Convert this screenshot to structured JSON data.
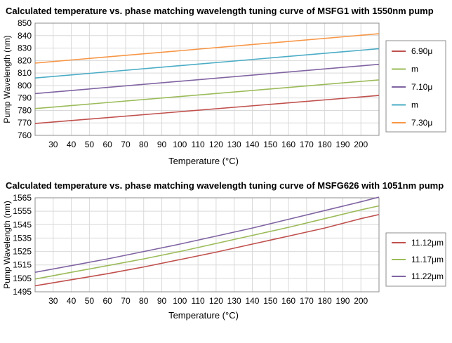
{
  "chart_data": [
    {
      "type": "line",
      "title": "Calculated temperature vs. phase matching wavelength tuning curve of MSFG1 with 1550nm pump",
      "xlabel": "Temperature (°C)",
      "ylabel": "Pump Wavelength (nm)",
      "xlim": [
        20,
        210
      ],
      "ylim": [
        760,
        850
      ],
      "xticks": [
        30,
        40,
        50,
        60,
        70,
        80,
        90,
        100,
        110,
        120,
        130,
        140,
        150,
        160,
        170,
        180,
        190,
        200
      ],
      "yticks": [
        760,
        770,
        780,
        790,
        800,
        810,
        820,
        830,
        840,
        850
      ],
      "grid": true,
      "legend_position": "right",
      "x": [
        20,
        210
      ],
      "series": [
        {
          "name": "6.90μ",
          "color": "#c0504d",
          "values": [
            769.5,
            792
          ]
        },
        {
          "name": "m",
          "color": "#9bbb59",
          "values": [
            781.5,
            804.5
          ]
        },
        {
          "name": "7.10μ",
          "color": "#8064a2",
          "values": [
            793.5,
            817
          ]
        },
        {
          "name": "m",
          "color": "#4bacc6",
          "values": [
            806,
            829.5
          ]
        },
        {
          "name": "7.30μ",
          "color": "#f79646",
          "values": [
            818,
            841.5
          ]
        }
      ]
    },
    {
      "type": "line",
      "title": "Calculated temperature vs. phase matching wavelength tuning curve of MSFG626 with 1051nm pump",
      "xlabel": "Temperature (°C)",
      "ylabel": "Pump Wavelength (nm)",
      "xlim": [
        20,
        210
      ],
      "ylim": [
        1495,
        1565
      ],
      "xticks": [
        30,
        40,
        50,
        60,
        70,
        80,
        90,
        100,
        110,
        120,
        130,
        140,
        150,
        160,
        170,
        180,
        190,
        200
      ],
      "yticks": [
        1495,
        1505,
        1515,
        1525,
        1535,
        1545,
        1555,
        1565
      ],
      "grid": true,
      "legend_position": "right",
      "x": [
        20,
        40,
        60,
        80,
        100,
        120,
        140,
        160,
        180,
        200,
        210
      ],
      "series": [
        {
          "name": "11.12μm",
          "color": "#c0504d",
          "values": [
            1499.5,
            1504,
            1508.5,
            1513.5,
            1519,
            1524.5,
            1530.5,
            1536.5,
            1542.5,
            1549.5,
            1552.5
          ]
        },
        {
          "name": "11.17μm",
          "color": "#9bbb59",
          "values": [
            1504.5,
            1509.5,
            1514.5,
            1519.5,
            1525,
            1531,
            1537,
            1543,
            1549.5,
            1556,
            1559
          ]
        },
        {
          "name": "11.22μm",
          "color": "#8064a2",
          "values": [
            1509.5,
            1514.5,
            1519.5,
            1525,
            1530.5,
            1536.5,
            1542.5,
            1549,
            1555.5,
            1562,
            1565.5
          ]
        }
      ]
    }
  ]
}
